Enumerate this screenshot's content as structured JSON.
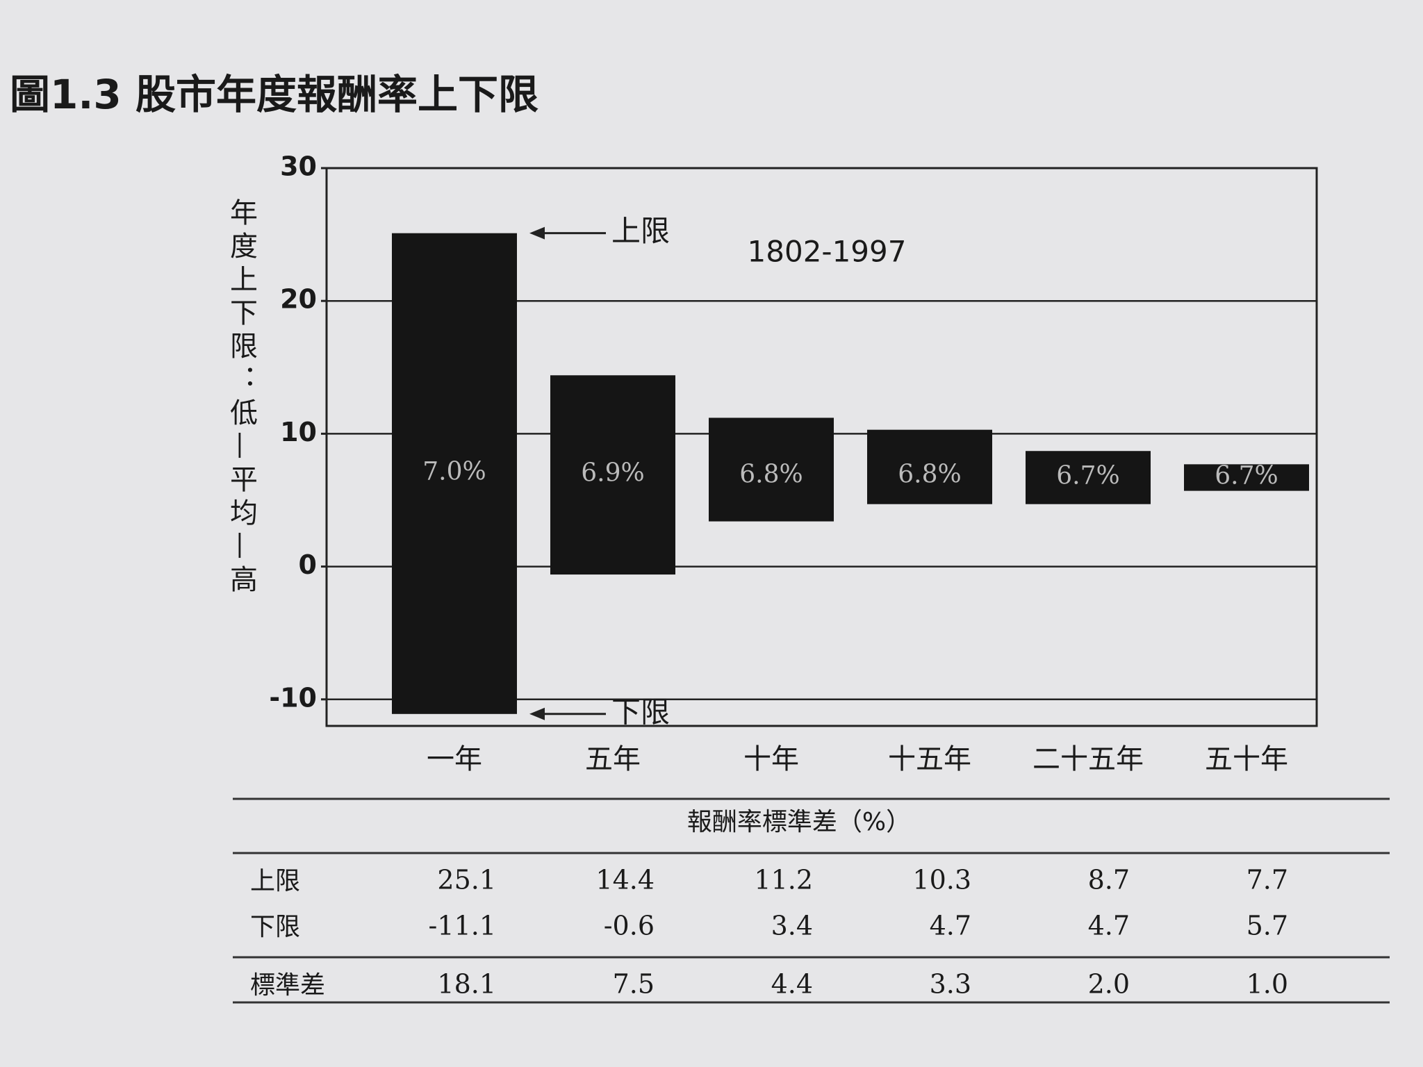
{
  "chart_data": {
    "type": "floating_bar",
    "title": "圖1.3  股市年度報酬率上下限",
    "ylabel": "年度上下限：低—平均—高",
    "period": "1802-1997",
    "categories": [
      "一年",
      "五年",
      "十年",
      "十五年",
      "二十五年",
      "五十年"
    ],
    "series": [
      {
        "name": "上限",
        "color": "#151515",
        "values": [
          25.1,
          14.4,
          11.2,
          10.3,
          8.7,
          7.7
        ]
      },
      {
        "name": "下限",
        "color": "#151515",
        "values": [
          -11.1,
          -0.6,
          3.4,
          4.7,
          4.7,
          5.7
        ]
      }
    ],
    "means": {
      "values": [
        7.0,
        6.9,
        6.8,
        6.8,
        6.7,
        6.7
      ],
      "value_labels": [
        "7.0%",
        "6.9%",
        "6.8%",
        "6.8%",
        "6.7%",
        "6.7%"
      ]
    },
    "table_title": "報酬率標準差（%）",
    "std": {
      "name": "標準差",
      "values": [
        18.1,
        7.5,
        4.4,
        3.3,
        2.0,
        1.0
      ],
      "value_labels": [
        "18.1",
        "7.5",
        "4.4",
        "3.3",
        "2.0",
        "1.0"
      ]
    },
    "ylim": [
      -12,
      30
    ],
    "yticks": [
      -10,
      0,
      10,
      20,
      30
    ],
    "grid": true
  }
}
